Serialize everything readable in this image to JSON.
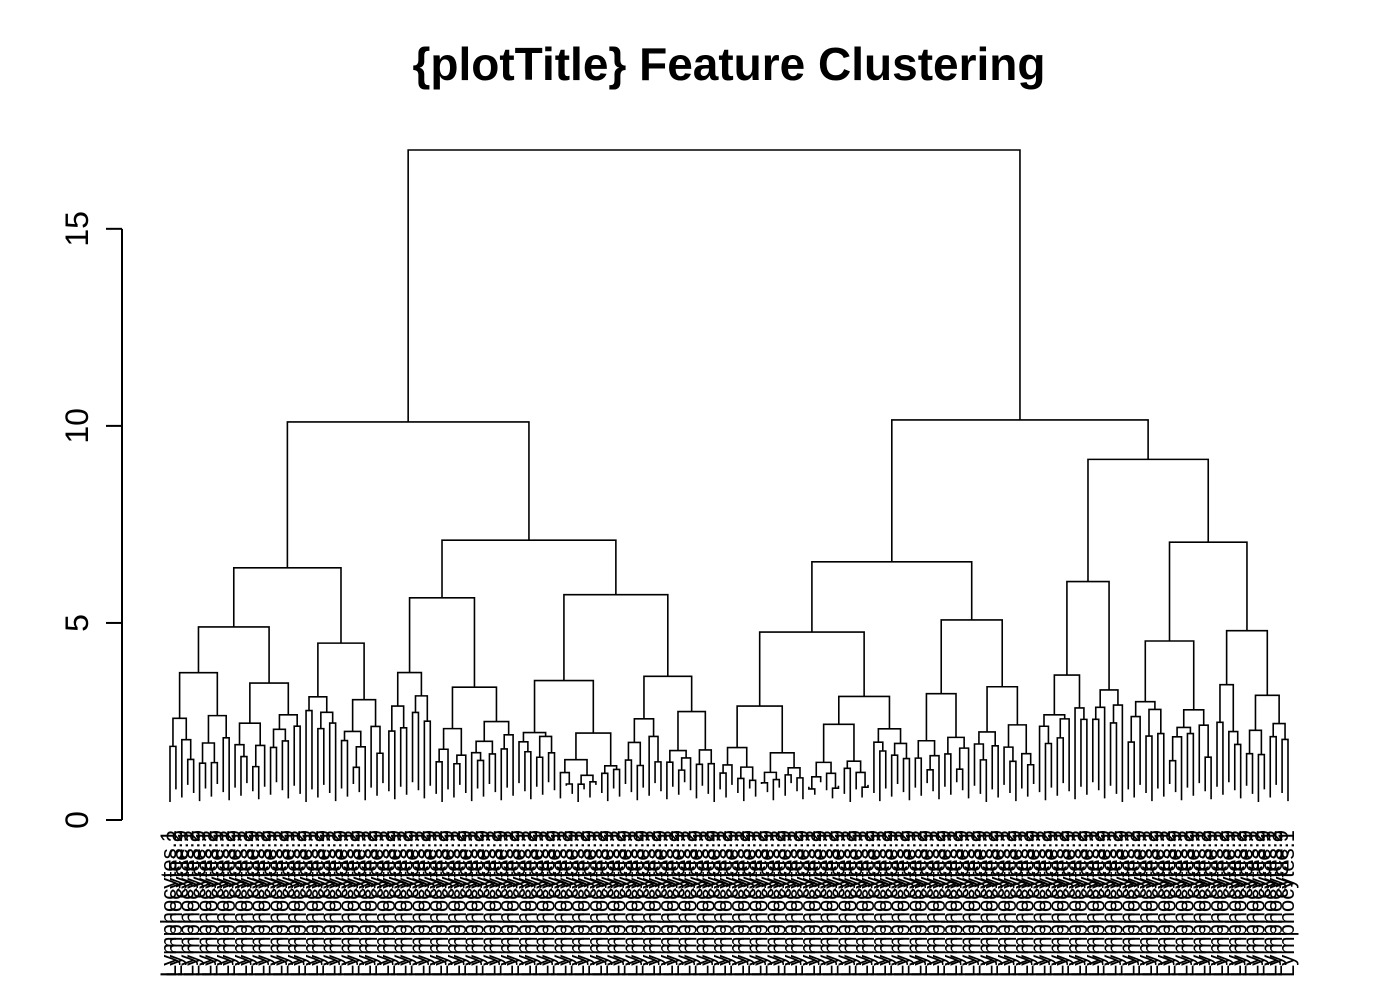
{
  "chart_data": {
    "type": "dendrogram",
    "title": "{plotTitle} Feature Clustering",
    "xlabel": "",
    "ylabel": "",
    "ylim": [
      0,
      17
    ],
    "y_ticks": [
      0,
      5,
      10,
      15
    ],
    "y_tick_labels": [
      "0",
      "5",
      "10",
      "15"
    ],
    "leaf_count": 190,
    "leaf_labels_visible_sample": [
      "Lymphocytes.1",
      "Lymphocytes.2",
      "cycle.9"
    ],
    "merge_heights": {
      "root": 17.0,
      "left_main": 10.1,
      "right_main": 10.15,
      "left_sub_a": 6.4,
      "left_sub_b": 7.1,
      "right_sub_a": 6.55,
      "right_sub_b": 9.15,
      "right_sub_b_left": 6.05,
      "right_sub_b_right": 7.05
    }
  }
}
